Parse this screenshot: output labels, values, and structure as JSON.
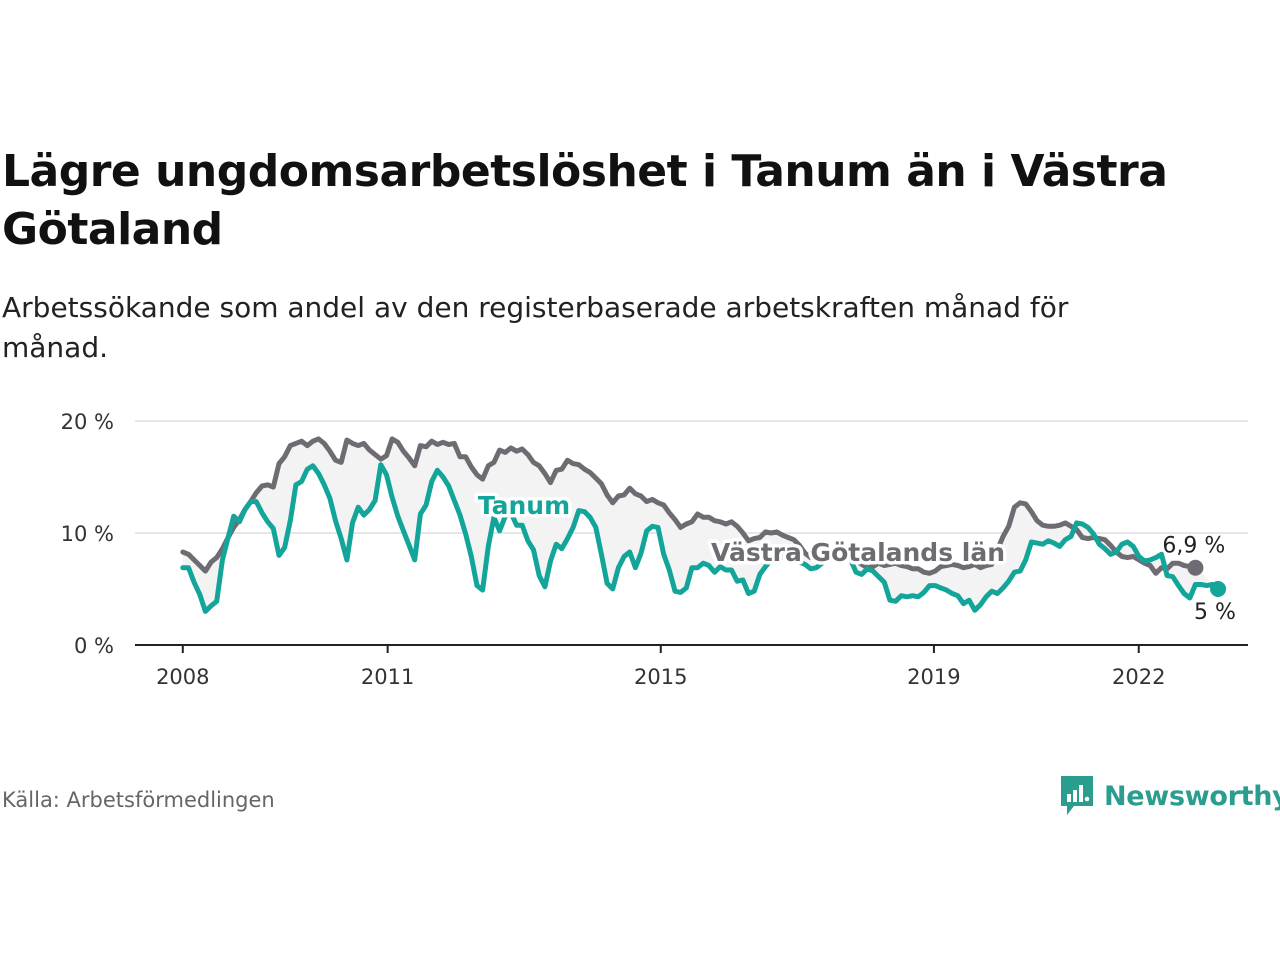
{
  "title": "Lägre ungdomsarbetslöshet i Tanum än i Västra Götaland",
  "subtitle": "Arbetssökande som andel av den registerbaserade arbetskraften månad för månad.",
  "source": "Källa: Arbetsförmedlingen",
  "brand": {
    "name": "Newsworthy",
    "color": "#2a9d8f",
    "icon": "newsworthy-logo-icon"
  },
  "colors": {
    "tanum": "#13a59a",
    "vgl": "#6e6c72",
    "fill": "#f3f3f3",
    "grid": "#dddddd",
    "axis": "#222222"
  },
  "chart_data": {
    "type": "line",
    "title": "Lägre ungdomsarbetslöshet i Tanum än i Västra Götaland",
    "xlabel": "",
    "ylabel": "",
    "x_start": 2008.0,
    "x_end": 2022.83,
    "xlim": [
      2007.3,
      2023.6
    ],
    "ylim": [
      0,
      20
    ],
    "grid": true,
    "x_ticks": [
      2008,
      2011,
      2015,
      2019,
      2022
    ],
    "y_ticks": [
      0,
      10,
      20
    ],
    "y_tick_labels": [
      "0 %",
      "10 %",
      "20 %"
    ],
    "series": [
      {
        "name": "Västra Götalands län",
        "end_label": "6,9 %",
        "values": [
          8.3,
          8.1,
          7.6,
          7.1,
          6.6,
          7.4,
          7.8,
          8.6,
          9.6,
          10.5,
          11.2,
          12.1,
          12.8,
          13.6,
          14.2,
          14.3,
          14.1,
          16.2,
          16.8,
          17.8,
          18.0,
          18.2,
          17.8,
          18.2,
          18.4,
          18.0,
          17.3,
          16.5,
          16.3,
          18.3,
          18.0,
          17.8,
          18.0,
          17.4,
          17.0,
          16.6,
          16.9,
          18.4,
          18.1,
          17.3,
          16.7,
          16.0,
          17.8,
          17.7,
          18.2,
          17.9,
          18.1,
          17.9,
          18.0,
          16.8,
          16.8,
          15.9,
          15.2,
          14.8,
          16.0,
          16.3,
          17.4,
          17.2,
          17.6,
          17.3,
          17.5,
          17.0,
          16.3,
          16.0,
          15.3,
          14.5,
          15.6,
          15.7,
          16.5,
          16.2,
          16.1,
          15.7,
          15.4,
          14.9,
          14.4,
          13.4,
          12.7,
          13.3,
          13.4,
          14.0,
          13.5,
          13.3,
          12.8,
          13.0,
          12.7,
          12.5,
          11.8,
          11.2,
          10.5,
          10.8,
          11.0,
          11.7,
          11.4,
          11.4,
          11.1,
          11.0,
          10.8,
          11.0,
          10.6,
          10.0,
          9.3,
          9.5,
          9.6,
          10.1,
          10.0,
          10.1,
          9.8,
          9.6,
          9.4,
          8.9,
          8.2,
          7.8,
          8.4,
          8.1,
          8.2,
          8.3,
          8.1,
          8.0,
          7.9,
          7.6,
          7.2,
          6.9,
          7.0,
          7.3,
          7.1,
          7.2,
          7.3,
          7.1,
          7.0,
          6.8,
          6.8,
          6.5,
          6.4,
          6.6,
          7.0,
          7.1,
          7.2,
          7.1,
          6.9,
          7.0,
          7.2,
          6.9,
          7.1,
          7.2,
          8.5,
          9.7,
          10.6,
          12.3,
          12.7,
          12.6,
          11.9,
          11.1,
          10.7,
          10.6,
          10.6,
          10.7,
          10.9,
          10.6,
          10.3,
          9.6,
          9.5,
          9.6,
          9.5,
          9.4,
          8.9,
          8.3,
          7.9,
          7.8,
          7.9,
          7.6,
          7.3,
          7.1,
          6.4,
          6.9,
          6.8,
          7.3,
          7.3,
          7.1,
          7.0,
          6.9
        ]
      },
      {
        "name": "Tanum",
        "end_label": "5 %",
        "values": [
          6.9,
          6.9,
          5.6,
          4.5,
          3.0,
          3.5,
          3.9,
          7.6,
          9.6,
          11.5,
          11.0,
          12.1,
          12.8,
          12.8,
          11.8,
          11.0,
          10.4,
          8.0,
          8.7,
          11.1,
          14.3,
          14.6,
          15.7,
          16.0,
          15.3,
          14.3,
          13.1,
          11.1,
          9.5,
          7.6,
          10.9,
          12.3,
          11.6,
          12.1,
          12.9,
          16.1,
          15.2,
          13.2,
          11.5,
          10.2,
          8.9,
          7.6,
          11.7,
          12.5,
          14.6,
          15.6,
          15.0,
          14.2,
          12.9,
          11.6,
          9.9,
          7.9,
          5.3,
          4.9,
          8.8,
          11.4,
          10.2,
          11.5,
          11.8,
          10.7,
          10.7,
          9.3,
          8.5,
          6.2,
          5.2,
          7.5,
          9.0,
          8.6,
          9.5,
          10.5,
          12.0,
          11.9,
          11.4,
          10.5,
          8.1,
          5.5,
          5.0,
          6.9,
          7.9,
          8.3,
          6.9,
          8.2,
          10.2,
          10.6,
          10.5,
          8.1,
          6.7,
          4.8,
          4.7,
          5.1,
          6.9,
          6.9,
          7.3,
          7.1,
          6.5,
          7.0,
          6.7,
          6.7,
          5.7,
          5.8,
          4.6,
          4.8,
          6.3,
          7.0,
          7.6,
          7.4,
          7.9,
          7.8,
          7.9,
          7.4,
          7.2,
          6.8,
          6.9,
          7.3,
          7.9,
          8.5,
          8.2,
          7.8,
          7.7,
          6.5,
          6.3,
          6.8,
          6.6,
          6.1,
          5.6,
          4.0,
          3.9,
          4.4,
          4.3,
          4.4,
          4.3,
          4.7,
          5.3,
          5.3,
          5.1,
          4.9,
          4.6,
          4.4,
          3.7,
          4.0,
          3.1,
          3.6,
          4.3,
          4.8,
          4.6,
          5.1,
          5.7,
          6.5,
          6.6,
          7.6,
          9.2,
          9.1,
          9.0,
          9.3,
          9.1,
          8.8,
          9.4,
          9.7,
          10.9,
          10.8,
          10.5,
          9.9,
          9.0,
          8.6,
          8.1,
          8.3,
          9.0,
          9.2,
          8.8,
          7.9,
          7.5,
          7.6,
          7.8,
          8.1,
          6.2,
          6.1,
          5.3,
          4.6,
          4.2,
          5.4,
          5.4,
          5.3,
          5.4,
          5.0
        ]
      }
    ]
  }
}
